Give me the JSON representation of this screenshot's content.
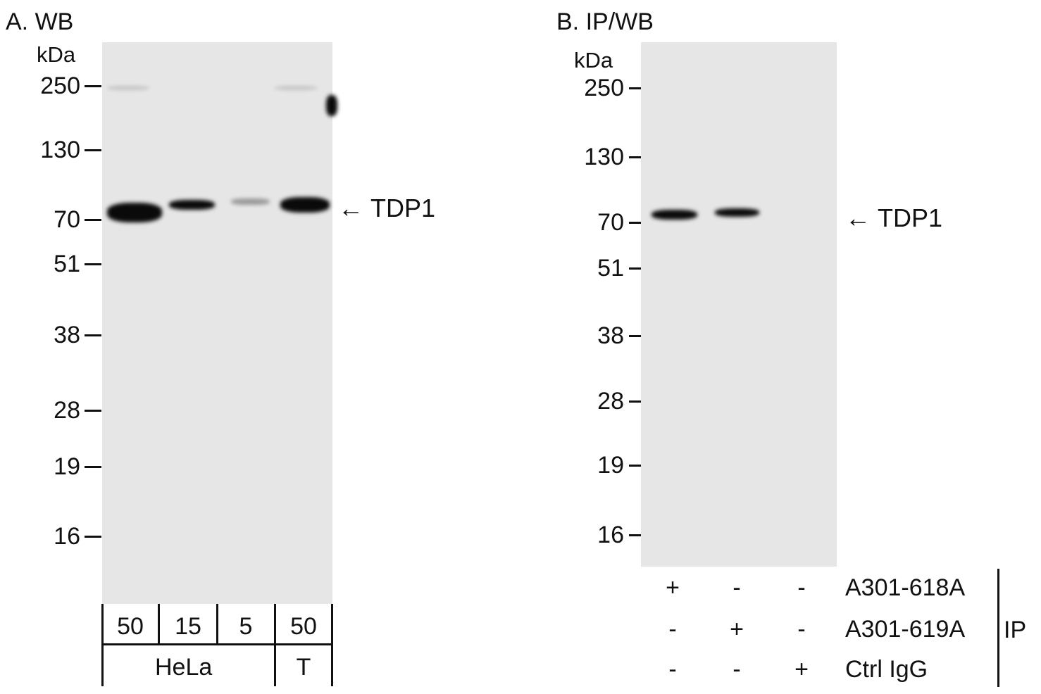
{
  "panel_a": {
    "title": "A. WB",
    "unit": "kDa",
    "markers": [
      "250",
      "130",
      "70",
      "51",
      "38",
      "28",
      "19",
      "16"
    ],
    "target": "TDP1",
    "lane_amounts": [
      "50",
      "15",
      "5",
      "50"
    ],
    "cell_lines": [
      "HeLa",
      "T"
    ]
  },
  "panel_b": {
    "title": "B. IP/WB",
    "unit": "kDa",
    "markers": [
      "250",
      "130",
      "70",
      "51",
      "38",
      "28",
      "19",
      "16"
    ],
    "target": "TDP1",
    "rows": [
      {
        "label": "A301-618A",
        "signs": [
          "+",
          "-",
          "-"
        ]
      },
      {
        "label": "A301-619A",
        "signs": [
          "-",
          "+",
          "-"
        ]
      },
      {
        "label": "Ctrl IgG",
        "signs": [
          "-",
          "-",
          "+"
        ]
      }
    ],
    "group_label": "IP"
  }
}
